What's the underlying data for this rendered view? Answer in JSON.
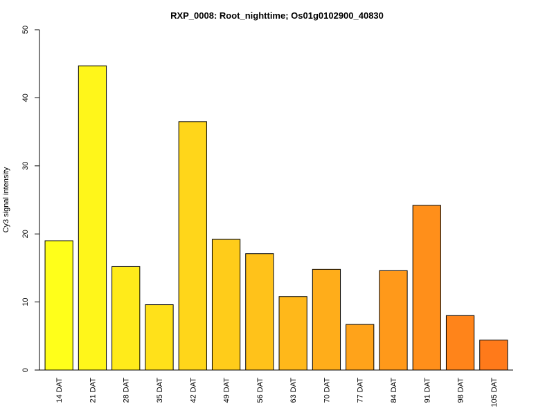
{
  "chart_data": {
    "type": "bar",
    "title": "RXP_0008: Root_nighttime; Os01g0102900_40830",
    "xlabel": "",
    "ylabel": "Cy3 signal intensity",
    "ylim": [
      0,
      50
    ],
    "yticks": [
      0,
      10,
      20,
      30,
      40,
      50
    ],
    "grid": false,
    "legend": "none",
    "categories": [
      "14 DAT",
      "21 DAT",
      "28 DAT",
      "35 DAT",
      "42 DAT",
      "49 DAT",
      "56 DAT",
      "63 DAT",
      "70 DAT",
      "77 DAT",
      "84 DAT",
      "91 DAT",
      "98 DAT",
      "105 DAT"
    ],
    "values": [
      19.0,
      44.7,
      15.2,
      9.6,
      36.5,
      19.2,
      17.1,
      10.8,
      14.8,
      6.7,
      14.6,
      24.2,
      8.0,
      4.4
    ],
    "colors": [
      "#FFFF1A",
      "#FFF61A",
      "#FFEB1A",
      "#FFE11A",
      "#FFD61A",
      "#FFCC1A",
      "#FFC21A",
      "#FFB81A",
      "#FFAD1A",
      "#FFA31A",
      "#FF991A",
      "#FF8F1A",
      "#FF841A",
      "#FF7A1A"
    ]
  }
}
